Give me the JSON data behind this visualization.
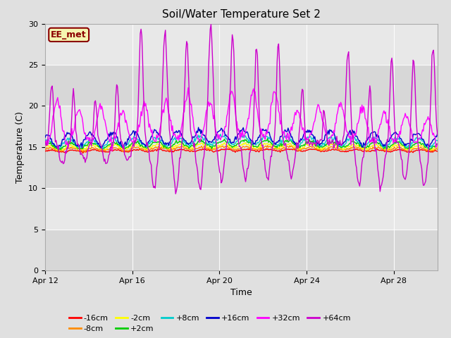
{
  "title": "Soil/Water Temperature Set 2",
  "xlabel": "Time",
  "ylabel": "Temperature (C)",
  "ylim": [
    0,
    30
  ],
  "days": 18,
  "x_ticks_labels": [
    "Apr 12",
    "Apr 16",
    "Apr 20",
    "Apr 24",
    "Apr 28"
  ],
  "x_ticks_pos": [
    0,
    4,
    8,
    12,
    16
  ],
  "fig_bg_color": "#e0e0e0",
  "plot_bg_color": "#e8e8e8",
  "band_color": "#d8d8d8",
  "grid_color": "#ffffff",
  "legend_box_color": "#f5f5b0",
  "legend_box_edge": "#8B0000",
  "legend_label": "EE_met",
  "series_colors": {
    "-16cm": "#ff0000",
    "-8cm": "#ff8c00",
    "-2cm": "#ffff00",
    "+2cm": "#00cc00",
    "+8cm": "#00cccc",
    "+16cm": "#0000cc",
    "+32cm": "#ff00ff",
    "+64cm": "#cc00cc"
  },
  "num_points": 500,
  "seed": 12
}
